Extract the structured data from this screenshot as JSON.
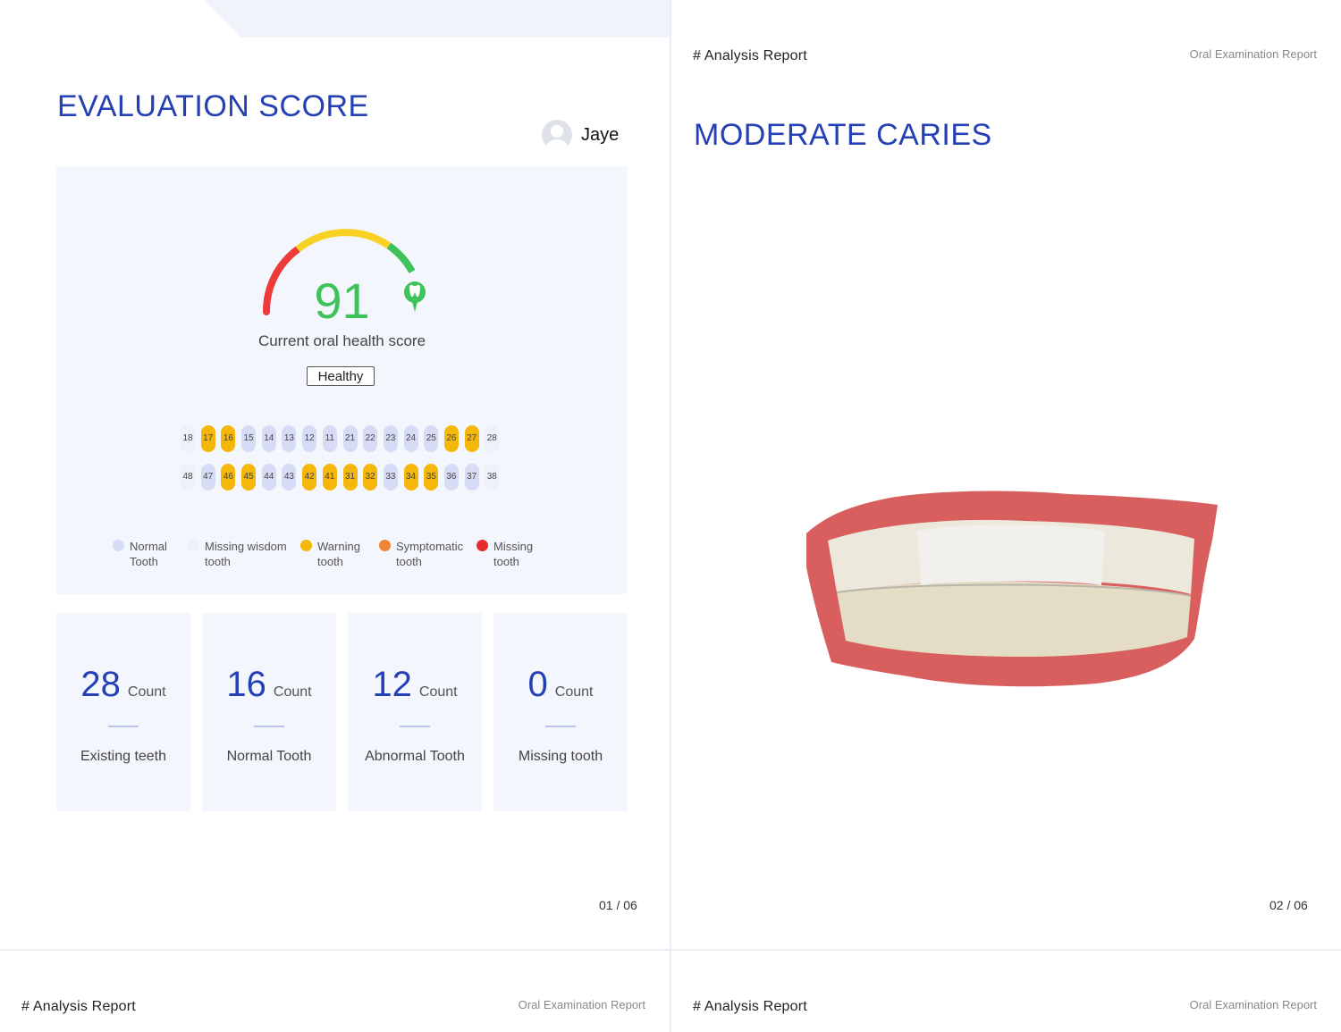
{
  "header": {
    "section": "# Analysis  Report",
    "report_name": "Oral Examination Report"
  },
  "page1": {
    "title": "EVALUATION  SCORE",
    "user": {
      "name": "Jaye"
    },
    "score": {
      "value": "91",
      "label": "Current oral health score",
      "status": "Healthy"
    },
    "upper_teeth": [
      {
        "n": "18",
        "state": "wisdom"
      },
      {
        "n": "17",
        "state": "warning"
      },
      {
        "n": "16",
        "state": "warning"
      },
      {
        "n": "15",
        "state": "normal"
      },
      {
        "n": "14",
        "state": "normal"
      },
      {
        "n": "13",
        "state": "normal"
      },
      {
        "n": "12",
        "state": "normal"
      },
      {
        "n": "11",
        "state": "normal"
      },
      {
        "n": "21",
        "state": "normal"
      },
      {
        "n": "22",
        "state": "normal"
      },
      {
        "n": "23",
        "state": "normal"
      },
      {
        "n": "24",
        "state": "normal"
      },
      {
        "n": "25",
        "state": "normal"
      },
      {
        "n": "26",
        "state": "warning"
      },
      {
        "n": "27",
        "state": "warning"
      },
      {
        "n": "28",
        "state": "wisdom"
      }
    ],
    "lower_teeth": [
      {
        "n": "48",
        "state": "wisdom"
      },
      {
        "n": "47",
        "state": "normal"
      },
      {
        "n": "46",
        "state": "warning"
      },
      {
        "n": "45",
        "state": "warning"
      },
      {
        "n": "44",
        "state": "normal"
      },
      {
        "n": "43",
        "state": "normal"
      },
      {
        "n": "42",
        "state": "warning"
      },
      {
        "n": "41",
        "state": "warning"
      },
      {
        "n": "31",
        "state": "warning"
      },
      {
        "n": "32",
        "state": "warning"
      },
      {
        "n": "33",
        "state": "normal"
      },
      {
        "n": "34",
        "state": "warning"
      },
      {
        "n": "35",
        "state": "warning"
      },
      {
        "n": "36",
        "state": "normal"
      },
      {
        "n": "37",
        "state": "normal"
      },
      {
        "n": "38",
        "state": "wisdom"
      }
    ],
    "legend": [
      {
        "line1": "Normal",
        "line2": "Tooth",
        "color": "#d6dcf5"
      },
      {
        "line1": "Missing  wisdom",
        "line2": "tooth",
        "color": "#eef0fa"
      },
      {
        "line1": "Warning",
        "line2": "tooth",
        "color": "#f5b70a"
      },
      {
        "line1": "Symptomatic",
        "line2": "tooth",
        "color": "#f08433"
      },
      {
        "line1": "Missing",
        "line2": "tooth",
        "color": "#e62b2b"
      }
    ],
    "stats": [
      {
        "value": "28",
        "unit": "Count",
        "label": "Existing teeth"
      },
      {
        "value": "16",
        "unit": "Count",
        "label": "Normal Tooth"
      },
      {
        "value": "12",
        "unit": "Count",
        "label": "Abnormal Tooth"
      },
      {
        "value": "0",
        "unit": "Count",
        "label": "Missing  tooth"
      }
    ],
    "page_number": "01 / 06"
  },
  "page2": {
    "title": "MODERATE  CARIES",
    "page_number": "02 / 06"
  },
  "colors": {
    "accent": "#2540b4",
    "score_green": "#3ec25a",
    "gauge_red": "#ef3a3a",
    "gauge_yellow": "#f7d224",
    "gauge_green": "#3ec25a"
  }
}
